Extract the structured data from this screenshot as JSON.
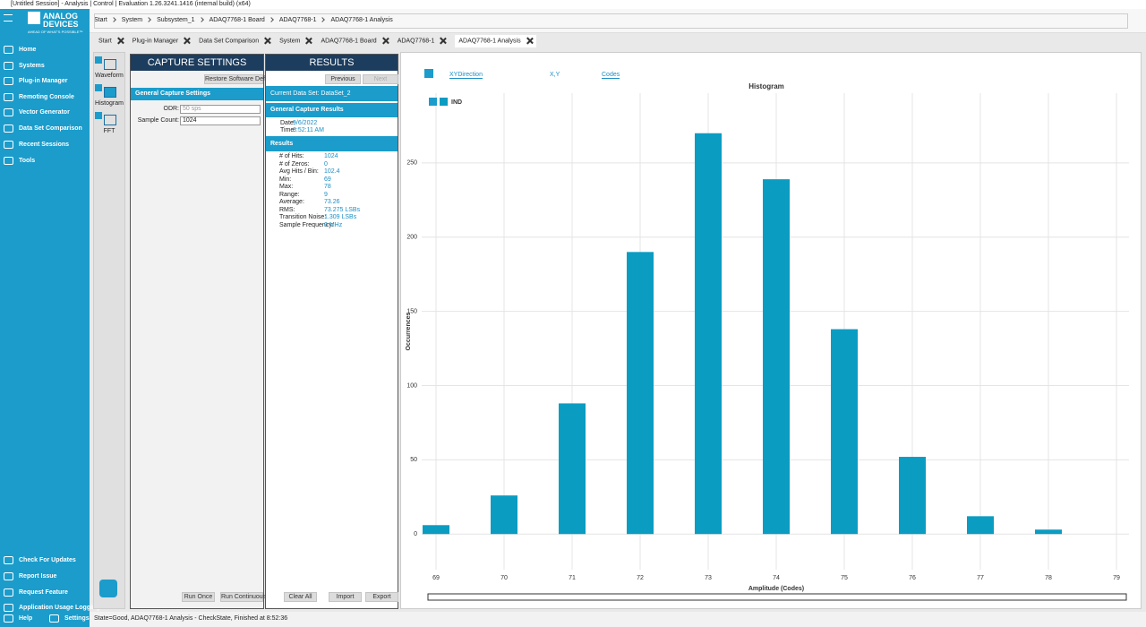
{
  "window": {
    "title": "[Untitled Session] - Analysis | Control | Evaluation 1.26.3241.1416 (internal build) (x64)"
  },
  "logo": {
    "line1": "ANALOG",
    "line2": "DEVICES",
    "tagline": "AHEAD OF WHAT'S POSSIBLE™"
  },
  "breadcrumb": [
    "Start",
    "System",
    "Subsystem_1",
    "ADAQ7768-1 Board",
    "ADAQ7768-1",
    "ADAQ7768-1 Analysis"
  ],
  "sidebar": {
    "nav": [
      "Home",
      "Systems",
      "Plug-in Manager",
      "Remoting Console",
      "Vector Generator",
      "Data Set Comparison",
      "Recent Sessions",
      "Tools"
    ],
    "bottom": [
      "Check For Updates",
      "Report Issue",
      "Request Feature",
      "Application Usage Logging"
    ],
    "help": "Help",
    "settings": "Settings"
  },
  "tabs": [
    "Start",
    "Plug-in Manager",
    "Data Set Comparison",
    "System",
    "ADAQ7768-1 Board",
    "ADAQ7768-1",
    "ADAQ7768-1 Analysis"
  ],
  "tools": [
    "Waveform",
    "Histogram",
    "FFT"
  ],
  "capture": {
    "title": "CAPTURE SETTINGS",
    "restore": "Restore Software Defaults",
    "section": "General Capture Settings",
    "fields": [
      {
        "label": "ODR:",
        "value": "50 sps"
      },
      {
        "label": "Sample Count:",
        "value": "1024"
      }
    ],
    "buttons": [
      "Run Once",
      "Run Continuously"
    ]
  },
  "results": {
    "title": "RESULTS",
    "previous": "Previous",
    "next": "Next",
    "dataset_label": "Current Data Set:",
    "dataset": "DataSet_2",
    "general_section": "General Capture Results",
    "general": [
      {
        "label": "Date:",
        "value": "9/6/2022"
      },
      {
        "label": "Time:",
        "value": "8:52:11 AM"
      }
    ],
    "section": "Results",
    "rows": [
      {
        "label": "# of Hits:",
        "value": "1024"
      },
      {
        "label": "# of Zeros:",
        "value": "0"
      },
      {
        "label": "Avg Hits / Bin:",
        "value": "102.4"
      },
      {
        "label": "Min:",
        "value": "69"
      },
      {
        "label": "Max:",
        "value": "78"
      },
      {
        "label": "Range:",
        "value": "9"
      },
      {
        "label": "Average:",
        "value": "73.26"
      },
      {
        "label": "RMS:",
        "value": "73.275 LSBs"
      },
      {
        "label": "Transition Noise:",
        "value": "1.309 LSBs"
      },
      {
        "label": "Sample Frequency:",
        "value": "0 MHz"
      }
    ],
    "buttons": [
      "Clear All",
      "Import",
      "Export"
    ]
  },
  "chart_toolbar": [
    "XYDirection",
    "X,Y",
    "Codes"
  ],
  "chart_data": {
    "type": "bar",
    "title": "Histogram",
    "x_label": "Amplitude (Codes)",
    "y_label": "Occurrences",
    "categories": [
      "69",
      "70",
      "71",
      "72",
      "73",
      "74",
      "75",
      "76",
      "77",
      "78",
      "79"
    ],
    "series": [
      {
        "name": "IND",
        "color": "#0b9cc2",
        "values": [
          6,
          26,
          88,
          190,
          270,
          239,
          138,
          52,
          12,
          3,
          0
        ]
      }
    ],
    "ylim": [
      -24,
      297
    ],
    "yticks": [
      0,
      50,
      100,
      150,
      200,
      250
    ],
    "grid": true
  },
  "status": "State=Good, ADAQ7768-1 Analysis - CheckState, Finished at 8:52:36"
}
